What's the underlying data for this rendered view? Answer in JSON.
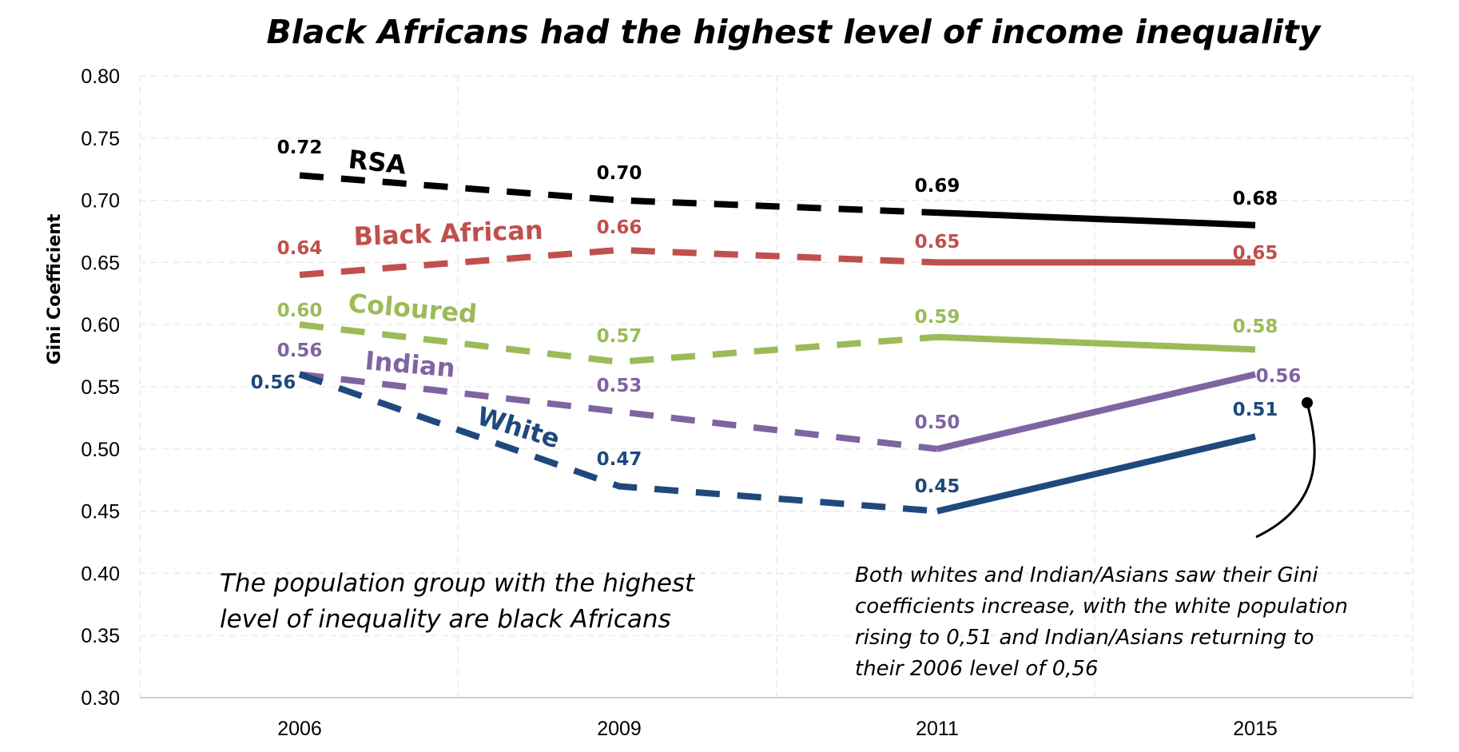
{
  "chart_data": {
    "type": "line",
    "title": "Black Africans had the highest level of income inequality",
    "ylabel": "Gini Coefficient",
    "xlabel": "",
    "categories": [
      "2006",
      "2009",
      "2011",
      "2015"
    ],
    "ylim": [
      0.3,
      0.8
    ],
    "yticks": [
      "0.80",
      "0.75",
      "0.70",
      "0.65",
      "0.60",
      "0.55",
      "0.50",
      "0.45",
      "0.40",
      "0.35",
      "0.30"
    ],
    "grid": true,
    "dashed_segment_until": "2011",
    "series": [
      {
        "name": "RSA",
        "color": "#000000",
        "values": [
          0.72,
          0.7,
          0.69,
          0.68
        ],
        "labels": [
          "0.72",
          "0.70",
          "0.69",
          "0.68"
        ]
      },
      {
        "name": "Black African",
        "color": "#c0504d",
        "values": [
          0.64,
          0.66,
          0.65,
          0.65
        ],
        "labels": [
          "0.64",
          "0.66",
          "0.65",
          "0.65"
        ]
      },
      {
        "name": "Coloured",
        "color": "#9bbb59",
        "values": [
          0.6,
          0.57,
          0.59,
          0.58
        ],
        "labels": [
          "0.60",
          "0.57",
          "0.59",
          "0.58"
        ]
      },
      {
        "name": "Indian",
        "color": "#8064a2",
        "values": [
          0.56,
          0.53,
          0.5,
          0.56
        ],
        "labels": [
          "0.56",
          "0.53",
          "0.50",
          "0.56"
        ]
      },
      {
        "name": "White",
        "color": "#1f497d",
        "values": [
          0.56,
          0.47,
          0.45,
          0.51
        ],
        "labels": [
          "0.56",
          "0.47",
          "0.45",
          "0.51"
        ]
      }
    ],
    "annotations": [
      {
        "text": [
          "The population group with the highest",
          "level of inequality are black Africans"
        ]
      },
      {
        "text": [
          "Both whites and Indian/Asians saw their Gini",
          "coefficients increase, with the white population",
          "rising to 0,51 and Indian/Asians returning to",
          "their 2006 level of 0,56"
        ]
      }
    ]
  }
}
